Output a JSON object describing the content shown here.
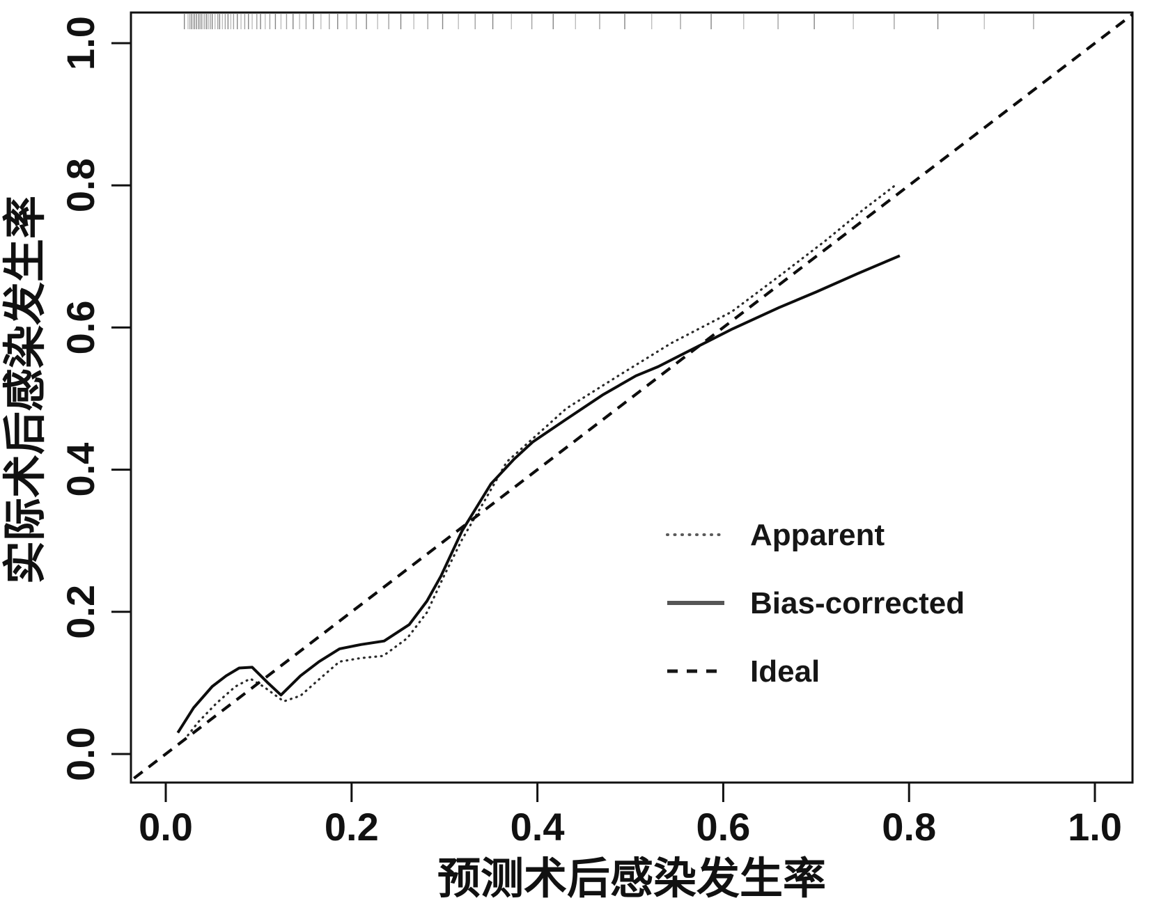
{
  "figure": {
    "background": "#ffffff",
    "ink_color": "#111111",
    "rug_color": "#6f6f6f"
  },
  "chart_data": {
    "type": "line",
    "title": "",
    "xlabel": "预测术后感染发生率",
    "ylabel": "实际术后感染发生率",
    "xlim": [
      0,
      1
    ],
    "ylim": [
      0,
      1
    ],
    "x_ticks": [
      0.0,
      0.2,
      0.4,
      0.6,
      0.8,
      1.0
    ],
    "x_tick_labels": [
      "0.0",
      "0.2",
      "0.4",
      "0.6",
      "0.8",
      "1.0"
    ],
    "y_ticks": [
      0.0,
      0.2,
      0.4,
      0.6,
      0.8,
      1.0
    ],
    "y_tick_labels": [
      "0.0",
      "0.2",
      "0.4",
      "0.6",
      "0.8",
      "1.0"
    ],
    "grid": false,
    "legend_position": "right-center",
    "series": [
      {
        "name": "Apparent",
        "line_style": "dotted",
        "color": "#2a2a2a",
        "points": [
          [
            0.02,
            0.02
          ],
          [
            0.035,
            0.045
          ],
          [
            0.055,
            0.072
          ],
          [
            0.075,
            0.095
          ],
          [
            0.091,
            0.106
          ],
          [
            0.105,
            0.095
          ],
          [
            0.127,
            0.074
          ],
          [
            0.145,
            0.082
          ],
          [
            0.165,
            0.105
          ],
          [
            0.187,
            0.13
          ],
          [
            0.21,
            0.135
          ],
          [
            0.234,
            0.138
          ],
          [
            0.26,
            0.163
          ],
          [
            0.281,
            0.199
          ],
          [
            0.3,
            0.252
          ],
          [
            0.319,
            0.302
          ],
          [
            0.343,
            0.356
          ],
          [
            0.367,
            0.411
          ],
          [
            0.409,
            0.46
          ],
          [
            0.431,
            0.486
          ],
          [
            0.487,
            0.532
          ],
          [
            0.544,
            0.578
          ],
          [
            0.609,
            0.622
          ],
          [
            0.66,
            0.672
          ],
          [
            0.71,
            0.722
          ],
          [
            0.75,
            0.765
          ],
          [
            0.787,
            0.802
          ]
        ]
      },
      {
        "name": "Bias-corrected",
        "line_style": "solid",
        "color": "#0d0d0d",
        "points": [
          [
            0.013,
            0.03
          ],
          [
            0.03,
            0.065
          ],
          [
            0.05,
            0.095
          ],
          [
            0.065,
            0.11
          ],
          [
            0.079,
            0.121
          ],
          [
            0.093,
            0.122
          ],
          [
            0.11,
            0.1
          ],
          [
            0.124,
            0.083
          ],
          [
            0.145,
            0.11
          ],
          [
            0.165,
            0.13
          ],
          [
            0.187,
            0.148
          ],
          [
            0.21,
            0.154
          ],
          [
            0.235,
            0.159
          ],
          [
            0.262,
            0.182
          ],
          [
            0.281,
            0.215
          ],
          [
            0.296,
            0.25
          ],
          [
            0.319,
            0.314
          ],
          [
            0.35,
            0.38
          ],
          [
            0.375,
            0.415
          ],
          [
            0.395,
            0.439
          ],
          [
            0.43,
            0.47
          ],
          [
            0.47,
            0.505
          ],
          [
            0.506,
            0.532
          ],
          [
            0.53,
            0.545
          ],
          [
            0.566,
            0.569
          ],
          [
            0.61,
            0.598
          ],
          [
            0.66,
            0.628
          ],
          [
            0.7,
            0.65
          ],
          [
            0.745,
            0.676
          ],
          [
            0.79,
            0.701
          ]
        ]
      },
      {
        "name": "Ideal",
        "line_style": "dashed",
        "color": "#0d0d0d",
        "points": [
          [
            -0.05,
            -0.05
          ],
          [
            1.05,
            1.05
          ]
        ]
      }
    ],
    "rug_x": [
      0.02,
      0.024,
      0.026,
      0.028,
      0.03,
      0.031,
      0.033,
      0.035,
      0.036,
      0.038,
      0.04,
      0.042,
      0.044,
      0.046,
      0.048,
      0.05,
      0.053,
      0.056,
      0.058,
      0.061,
      0.064,
      0.067,
      0.07,
      0.073,
      0.077,
      0.081,
      0.085,
      0.089,
      0.093,
      0.098,
      0.102,
      0.107,
      0.112,
      0.118,
      0.124,
      0.13,
      0.137,
      0.144,
      0.151,
      0.159,
      0.167,
      0.176,
      0.185,
      0.195,
      0.205,
      0.216,
      0.228,
      0.24,
      0.253,
      0.267,
      0.282,
      0.298,
      0.315,
      0.333,
      0.352,
      0.372,
      0.394,
      0.417,
      0.441,
      0.467,
      0.494,
      0.523,
      0.554,
      0.587,
      0.622,
      0.659,
      0.698,
      0.74,
      0.784,
      0.831,
      0.881,
      0.934
    ],
    "legend": [
      "Apparent",
      "Bias-corrected",
      "Ideal"
    ]
  }
}
